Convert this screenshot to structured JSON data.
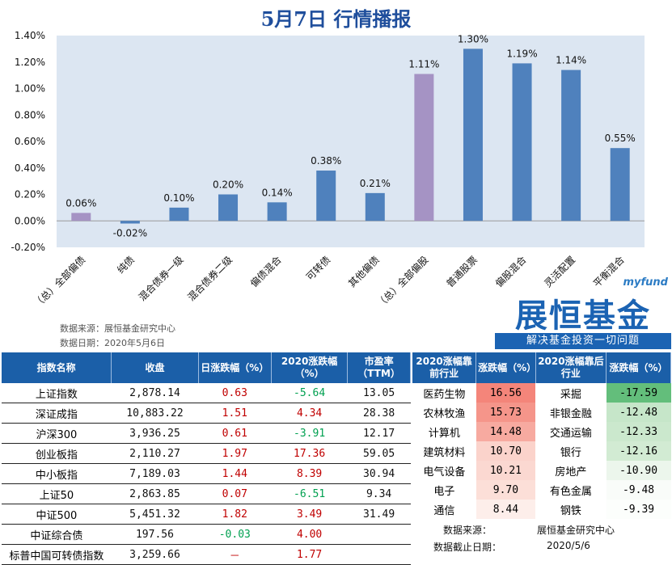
{
  "title": "5月7日 行情播报",
  "chart_data": {
    "type": "bar",
    "categories": [
      "（总）全部偏债",
      "纯债",
      "混合债券一级",
      "混合债券二级",
      "偏债混合",
      "可转债",
      "其他偏债",
      "（总）全部偏股",
      "普通股票",
      "偏股混合",
      "灵活配置",
      "平衡混合"
    ],
    "values": [
      0.06,
      -0.02,
      0.1,
      0.2,
      0.14,
      0.38,
      0.21,
      1.11,
      1.3,
      1.19,
      1.14,
      0.55
    ],
    "labels": [
      "0.06%",
      "-0.02%",
      "0.10%",
      "0.20%",
      "0.14%",
      "0.38%",
      "0.21%",
      "1.11%",
      "1.30%",
      "1.19%",
      "1.14%",
      "0.55%"
    ],
    "highlight": [
      0,
      7
    ],
    "colors": {
      "normal": "#4f81bd",
      "highlight": "#a593c4",
      "plot_bg": "#dce6f2"
    },
    "ylim": [
      -0.2,
      1.4
    ],
    "yticks": [
      "-0.20%",
      "0.00%",
      "0.20%",
      "0.40%",
      "0.60%",
      "0.80%",
      "1.00%",
      "1.20%",
      "1.40%"
    ],
    "grid": false
  },
  "source": {
    "line1": "数据来源：展恒基金研究中心",
    "line2": "数据日期：2020年5月6日"
  },
  "logo": {
    "en": "myfund",
    "cn": "展恒基金",
    "slogan": "解决基金投资一切问题"
  },
  "left_table": {
    "headers": [
      "指数名称",
      "收盘",
      "日涨跌幅（%）",
      "2020涨跌幅（%）",
      "市盈率（TTM）"
    ],
    "rows": [
      {
        "name": "上证指数",
        "close": "2,878.14",
        "day": "0.63",
        "day_sign": "pos",
        "ytd": "-5.64",
        "ytd_sign": "neg",
        "pe": "13.05"
      },
      {
        "name": "深证成指",
        "close": "10,883.22",
        "day": "1.51",
        "day_sign": "pos",
        "ytd": "4.34",
        "ytd_sign": "pos",
        "pe": "28.38"
      },
      {
        "name": "沪深300",
        "close": "3,936.25",
        "day": "0.61",
        "day_sign": "pos",
        "ytd": "-3.91",
        "ytd_sign": "neg",
        "pe": "12.17"
      },
      {
        "name": "创业板指",
        "close": "2,110.27",
        "day": "1.97",
        "day_sign": "pos",
        "ytd": "17.36",
        "ytd_sign": "pos",
        "pe": "59.05"
      },
      {
        "name": "中小板指",
        "close": "7,189.03",
        "day": "1.44",
        "day_sign": "pos",
        "ytd": "8.39",
        "ytd_sign": "pos",
        "pe": "30.94"
      },
      {
        "name": "上证50",
        "close": "2,863.85",
        "day": "0.07",
        "day_sign": "pos",
        "ytd": "-6.51",
        "ytd_sign": "neg",
        "pe": "9.34"
      },
      {
        "name": "中证500",
        "close": "5,451.32",
        "day": "1.82",
        "day_sign": "pos",
        "ytd": "3.49",
        "ytd_sign": "pos",
        "pe": "31.49"
      },
      {
        "name": "中证综合债",
        "close": "197.56",
        "day": "-0.03",
        "day_sign": "neg",
        "ytd": "4.00",
        "ytd_sign": "pos",
        "pe": ""
      },
      {
        "name": "标普中国可转债指数",
        "close": "3,259.66",
        "day": "－",
        "day_sign": "pos",
        "ytd": "1.77",
        "ytd_sign": "pos",
        "pe": ""
      }
    ]
  },
  "right_table": {
    "headers": [
      "2020涨幅靠前行业",
      "涨跌幅（%）",
      "2020涨幅靠后行业",
      "涨跌幅（%）"
    ],
    "rows": [
      {
        "top": "医药生物",
        "top_v": "16.56",
        "top_c": "#f4857a",
        "bot": "采掘",
        "bot_v": "-17.59",
        "bot_c": "#63be7b"
      },
      {
        "top": "农林牧渔",
        "top_v": "15.73",
        "top_c": "#f5958a",
        "bot": "非银金融",
        "bot_v": "-12.48",
        "bot_c": "#c6e6c9"
      },
      {
        "top": "计算机",
        "top_v": "14.48",
        "top_c": "#f7aaa0",
        "bot": "交通运输",
        "bot_v": "-12.33",
        "bot_c": "#cbe8cd"
      },
      {
        "top": "建筑材料",
        "top_v": "10.70",
        "top_c": "#fbd3cb",
        "bot": "银行",
        "bot_v": "-12.16",
        "bot_c": "#d2ebd3"
      },
      {
        "top": "电气设备",
        "top_v": "10.21",
        "top_c": "#fbd8d1",
        "bot": "房地产",
        "bot_v": "-10.90",
        "bot_c": "#ecf6ec"
      },
      {
        "top": "电子",
        "top_v": "9.70",
        "top_c": "#fcdfd8",
        "bot": "有色金属",
        "bot_v": "-9.48",
        "bot_c": "#f9fcf9"
      },
      {
        "top": "通信",
        "top_v": "8.44",
        "top_c": "#fdeeea",
        "bot": "钢铁",
        "bot_v": "-9.39",
        "bot_c": "#fcfefc"
      }
    ]
  },
  "footer": {
    "source_label": "数据来源：",
    "source": "展恒基金研究中心",
    "date_label": "数据截止日期：",
    "date": "2020/5/6"
  }
}
